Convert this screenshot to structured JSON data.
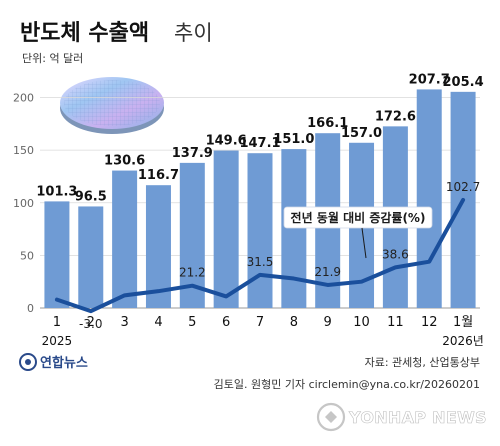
{
  "title_main": "반도체 수출액",
  "title_sub": "추이",
  "unit": "단위: 억 달러",
  "chart_data": {
    "type": "bar",
    "categories": [
      "1",
      "2",
      "3",
      "4",
      "5",
      "6",
      "7",
      "8",
      "9",
      "10",
      "11",
      "12",
      "1월"
    ],
    "year_labels": [
      {
        "index": 0,
        "text": "2025"
      },
      {
        "index": 12,
        "text": "2026년"
      }
    ],
    "series": [
      {
        "values": [
          101.3,
          96.5,
          130.6,
          116.7,
          137.9,
          149.6,
          147.1,
          151.0,
          166.1,
          157.0,
          172.6,
          207.7,
          205.4
        ],
        "color": "#6f9bd4"
      },
      {
        "name": "전년 동월 대비 증감률(%)",
        "type": "line",
        "values": [
          8,
          -3.0,
          12,
          16,
          21.2,
          11,
          31.5,
          28,
          21.9,
          25,
          38.6,
          44,
          102.7
        ],
        "labels": [
          "",
          "-3.0",
          "",
          "",
          "21.2",
          "",
          "31.5",
          "",
          "21.9",
          "",
          "38.6",
          "",
          "102.7"
        ],
        "color": "#1a4f9c"
      }
    ],
    "ylim": [
      0,
      210
    ],
    "yticks": [
      0,
      50,
      100,
      150,
      200
    ],
    "grid": true
  },
  "source": "자료: 관세청, 산업통상부",
  "credit": "김토일. 원형민 기자 circlemin@yna.co.kr/20260201",
  "logo_ko": "연합뉴스",
  "logo_en": "YONHAP NEWS"
}
